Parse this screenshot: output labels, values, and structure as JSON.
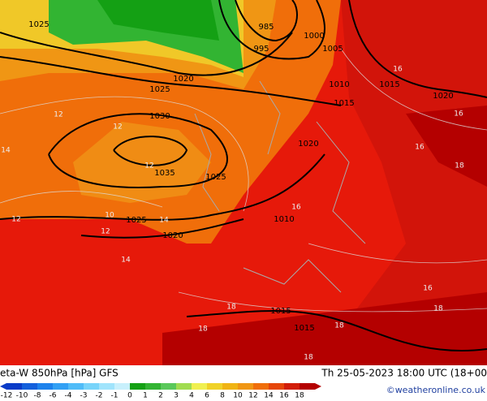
{
  "header": {
    "title": "eta-W 850hPa [hPa] GFS",
    "valid_time": "Th 25-05-2023 18:00 UTC (18+00",
    "credit": "©weatheronline.co.uk"
  },
  "colorbar": {
    "labels": [
      "-12",
      "-10",
      "-8",
      "-6",
      "-4",
      "-3",
      "-2",
      "-1",
      "0",
      "1",
      "2",
      "3",
      "4",
      "6",
      "8",
      "10",
      "12",
      "14",
      "16",
      "18"
    ],
    "colors": [
      "#0a3cc8",
      "#1460dc",
      "#1e82ec",
      "#32a0f4",
      "#50bcf8",
      "#78d4fa",
      "#a0e4fc",
      "#c8f0fc",
      "#14a014",
      "#32b432",
      "#5ac85a",
      "#a0dc50",
      "#f0f050",
      "#f0d228",
      "#f0b414",
      "#f09614",
      "#f06e0a",
      "#e6460a",
      "#d21e0a",
      "#b40000"
    ]
  },
  "isobar_labels": [
    "1025",
    "985",
    "1000",
    "1005",
    "995",
    "1020",
    "1025",
    "1010",
    "1015",
    "1030",
    "1020",
    "1035",
    "1025",
    "1025",
    "1020",
    "1015",
    "1020",
    "1015",
    "1015",
    "1010"
  ],
  "theta_labels": [
    "16",
    "12",
    "12",
    "12",
    "14",
    "12",
    "16",
    "18",
    "16",
    "18",
    "18",
    "18",
    "14",
    "10",
    "16",
    "12",
    "14",
    "16",
    "18",
    "18"
  ]
}
